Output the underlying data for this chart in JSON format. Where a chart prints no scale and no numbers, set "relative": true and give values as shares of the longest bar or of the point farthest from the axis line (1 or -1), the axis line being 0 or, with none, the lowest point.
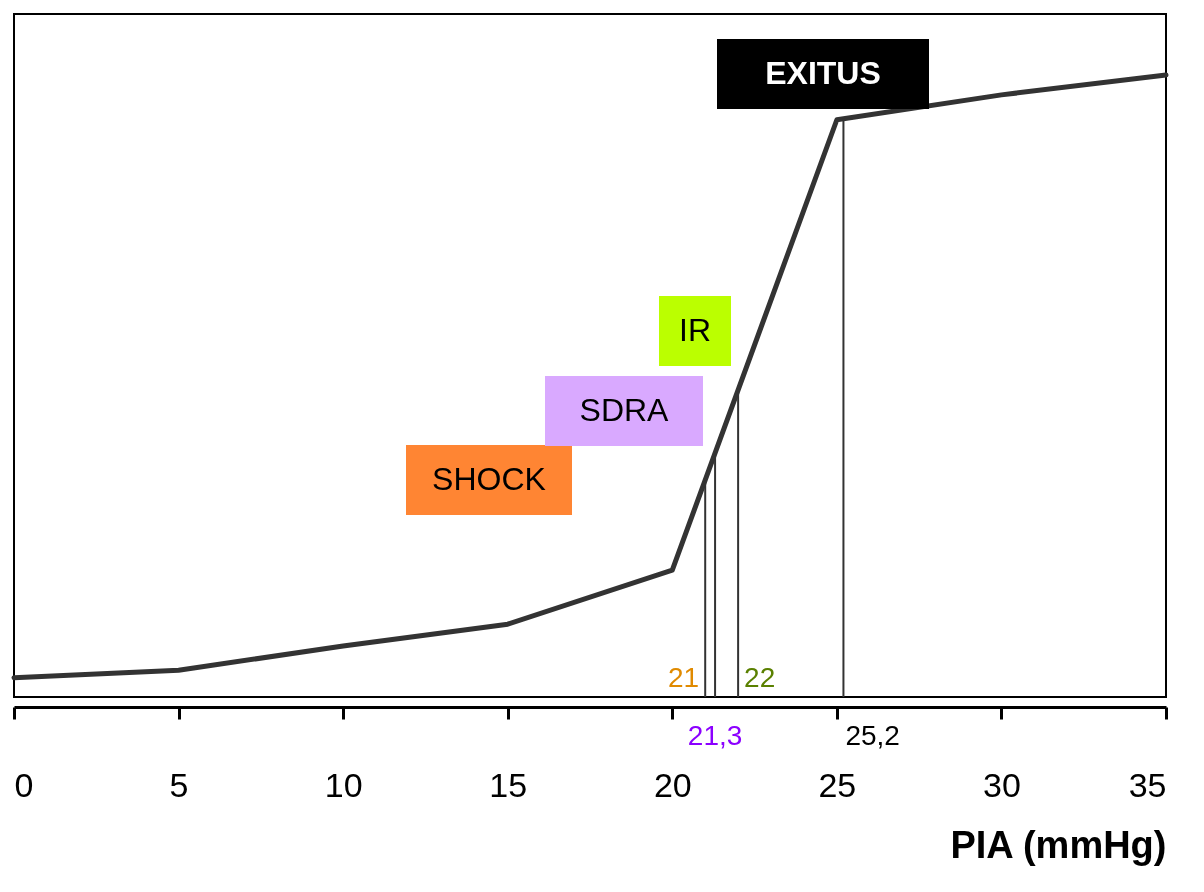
{
  "chart_data": {
    "type": "line",
    "relative": true,
    "xlabel": "PIA  (mmHg)",
    "x": [
      0,
      5,
      10,
      15,
      20,
      25,
      30,
      35
    ],
    "values": [
      0.031,
      0.043,
      0.082,
      0.117,
      0.204,
      0.928,
      0.968,
      1
    ],
    "color": "#333333",
    "xlim": [
      0,
      35
    ],
    "xticks": [
      0,
      5,
      10,
      15,
      20,
      25,
      30,
      35
    ],
    "ref_lines": [
      {
        "axis": "x",
        "value": 21,
        "label": "21"
      },
      {
        "axis": "x",
        "value": 21.3,
        "label": "21,3"
      },
      {
        "axis": "x",
        "value": 22,
        "label": "22"
      },
      {
        "axis": "x",
        "value": 25.2,
        "label": "25,2"
      }
    ],
    "annotations": [
      "SHOCK",
      "SDRA",
      "IR",
      "EXITUS"
    ]
  }
}
